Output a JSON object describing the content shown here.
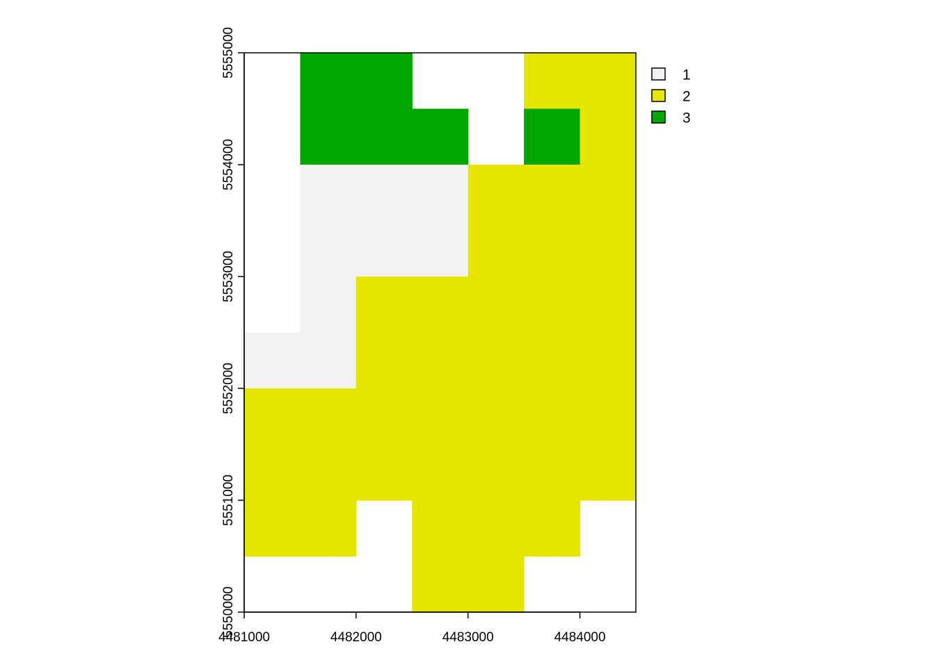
{
  "chart_data": {
    "type": "heatmap",
    "title": "",
    "xlabel": "",
    "ylabel": "",
    "xlim": [
      4481000,
      4484500
    ],
    "ylim": [
      5550000,
      5555000
    ],
    "cell_size": 500,
    "x_ticks": [
      4481000,
      4482000,
      4483000,
      4484000
    ],
    "x_tick_labels": [
      "4481000",
      "4482000",
      "4483000",
      "4484000"
    ],
    "y_ticks": [
      5550000,
      5551000,
      5552000,
      5553000,
      5554000,
      5555000
    ],
    "y_tick_labels": [
      "5550000",
      "5551000",
      "5552000",
      "5553000",
      "5554000",
      "5555000"
    ],
    "classes": [
      {
        "value": 1,
        "label": "1",
        "color": "#f2f2f2"
      },
      {
        "value": 2,
        "label": "2",
        "color": "#e6e600"
      },
      {
        "value": 3,
        "label": "3",
        "color": "#00a600"
      }
    ],
    "legend_position": "top-right",
    "grid": false,
    "rows_top_to_bottom": [
      [
        null,
        3,
        3,
        null,
        null,
        2,
        2
      ],
      [
        null,
        3,
        3,
        3,
        null,
        3,
        2
      ],
      [
        null,
        1,
        1,
        1,
        2,
        2,
        2
      ],
      [
        null,
        1,
        1,
        1,
        2,
        2,
        2
      ],
      [
        null,
        1,
        2,
        2,
        2,
        2,
        2
      ],
      [
        1,
        1,
        2,
        2,
        2,
        2,
        2
      ],
      [
        2,
        2,
        2,
        2,
        2,
        2,
        2
      ],
      [
        2,
        2,
        2,
        2,
        2,
        2,
        2
      ],
      [
        2,
        2,
        null,
        2,
        2,
        2,
        null
      ],
      [
        null,
        null,
        null,
        2,
        2,
        null,
        null
      ]
    ]
  }
}
